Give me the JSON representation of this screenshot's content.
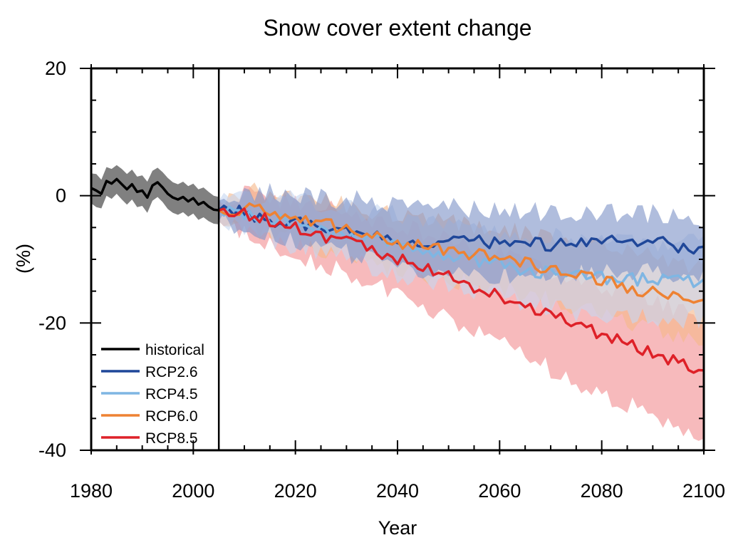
{
  "chart_data": {
    "type": "line",
    "title": "Snow cover extent change",
    "xlabel": "Year",
    "ylabel": "(%)",
    "xlim": [
      1980,
      2100
    ],
    "ylim": [
      -40,
      20
    ],
    "xticks": [
      1980,
      2000,
      2020,
      2040,
      2060,
      2080,
      2100
    ],
    "yticks": [
      20,
      0,
      -20,
      -40
    ],
    "xtick_labels": [
      "1980",
      "2000",
      "2020",
      "2040",
      "2060",
      "2080",
      "2100"
    ],
    "ytick_labels": [
      "20",
      "0",
      "-20",
      "-40"
    ],
    "vline_x": 2005,
    "grid": false,
    "legend_position": "bottom-left",
    "series": [
      {
        "name": "historical",
        "color": "#000000",
        "band_color": "#808080",
        "x": [
          1980,
          1981,
          1982,
          1983,
          1984,
          1985,
          1986,
          1987,
          1988,
          1989,
          1990,
          1991,
          1992,
          1993,
          1994,
          1995,
          1996,
          1997,
          1998,
          1999,
          2000,
          2001,
          2002,
          2003,
          2004,
          2005
        ],
        "y": [
          1.2,
          0.8,
          0.3,
          2.3,
          1.9,
          2.6,
          1.8,
          1.0,
          1.8,
          0.6,
          0.8,
          -0.3,
          1.6,
          2.1,
          1.3,
          0.3,
          -0.3,
          -0.6,
          -0.2,
          -0.9,
          -0.4,
          -1.4,
          -1.0,
          -1.7,
          -2.2,
          -2.3
        ],
        "upper": [
          3.5,
          3.4,
          2.5,
          4.5,
          4.2,
          4.8,
          4.2,
          3.4,
          4.1,
          3.0,
          3.2,
          2.2,
          3.9,
          4.4,
          3.7,
          2.8,
          2.1,
          1.8,
          2.2,
          1.5,
          1.9,
          1.0,
          1.3,
          0.6,
          0.0,
          -0.2
        ],
        "lower": [
          -1.2,
          -1.8,
          -2.0,
          0.0,
          -0.5,
          0.3,
          -0.6,
          -1.4,
          -0.6,
          -1.8,
          -1.6,
          -2.7,
          -0.8,
          -0.2,
          -1.0,
          -2.1,
          -2.7,
          -3.0,
          -2.6,
          -3.3,
          -2.8,
          -3.8,
          -3.4,
          -4.0,
          -4.4,
          -4.5
        ]
      },
      {
        "name": "RCP2.6",
        "color": "#1f4799",
        "band_color": "#7f95c8",
        "x": [
          2005,
          2010,
          2015,
          2020,
          2025,
          2030,
          2035,
          2040,
          2045,
          2050,
          2055,
          2060,
          2065,
          2070,
          2075,
          2080,
          2085,
          2090,
          2095,
          2100
        ],
        "y": [
          -2.3,
          -2.6,
          -3.8,
          -4.3,
          -4.9,
          -5.6,
          -6.3,
          -6.9,
          -7.5,
          -7.2,
          -6.9,
          -7.6,
          -7.3,
          -7.9,
          -7.0,
          -6.9,
          -7.7,
          -7.2,
          -7.9,
          -8.3
        ],
        "upper": [
          -0.8,
          0.4,
          0.6,
          0.1,
          -0.3,
          -0.6,
          -0.8,
          -1.2,
          -1.5,
          -1.8,
          -1.9,
          -2.2,
          -2.3,
          -2.7,
          -2.6,
          -2.5,
          -2.9,
          -2.7,
          -3.2,
          -3.6
        ],
        "lower": [
          -4.0,
          -5.2,
          -6.4,
          -7.3,
          -8.2,
          -9.1,
          -10.2,
          -11.1,
          -11.8,
          -12.0,
          -12.0,
          -12.5,
          -12.3,
          -12.9,
          -12.1,
          -11.7,
          -12.4,
          -11.9,
          -12.3,
          -12.7
        ]
      },
      {
        "name": "RCP4.5",
        "color": "#7fb6e3",
        "band_color": "#c6d6f0",
        "x": [
          2005,
          2010,
          2015,
          2020,
          2025,
          2030,
          2035,
          2040,
          2045,
          2050,
          2055,
          2060,
          2065,
          2070,
          2075,
          2080,
          2085,
          2090,
          2095,
          2100
        ],
        "y": [
          -2.3,
          -2.9,
          -3.6,
          -4.3,
          -5.2,
          -6.1,
          -6.8,
          -7.6,
          -8.5,
          -9.3,
          -10.2,
          -10.8,
          -11.6,
          -12.2,
          -12.6,
          -12.9,
          -13.1,
          -13.2,
          -13.3,
          -13.4
        ],
        "upper": [
          -0.8,
          0.1,
          -0.2,
          -0.6,
          -1.3,
          -2.0,
          -2.5,
          -3.1,
          -3.8,
          -4.4,
          -5.1,
          -5.5,
          -6.1,
          -6.5,
          -6.8,
          -7.0,
          -7.1,
          -7.2,
          -7.3,
          -7.4
        ],
        "lower": [
          -4.0,
          -5.6,
          -6.8,
          -7.9,
          -9.0,
          -10.2,
          -11.2,
          -12.3,
          -13.3,
          -14.3,
          -15.4,
          -16.2,
          -17.2,
          -17.8,
          -18.3,
          -18.7,
          -19.0,
          -19.2,
          -19.3,
          -19.5
        ]
      },
      {
        "name": "RCP6.0",
        "color": "#ee8233",
        "band_color": "#f5b88a",
        "x": [
          2005,
          2010,
          2015,
          2020,
          2025,
          2030,
          2035,
          2040,
          2045,
          2050,
          2055,
          2060,
          2065,
          2070,
          2075,
          2080,
          2085,
          2090,
          2095,
          2100
        ],
        "y": [
          -2.3,
          -2.1,
          -2.6,
          -3.3,
          -4.3,
          -5.3,
          -6.2,
          -7.2,
          -8.0,
          -8.7,
          -9.3,
          -9.9,
          -10.6,
          -11.4,
          -12.4,
          -13.3,
          -14.3,
          -15.3,
          -16.2,
          -17.0
        ],
        "upper": [
          -0.8,
          0.5,
          0.7,
          0.1,
          -0.7,
          -1.6,
          -2.3,
          -3.1,
          -3.7,
          -4.2,
          -4.7,
          -5.2,
          -5.7,
          -6.4,
          -7.3,
          -8.1,
          -9.0,
          -9.8,
          -10.6,
          -11.3
        ],
        "lower": [
          -4.0,
          -4.8,
          -6.0,
          -7.0,
          -8.2,
          -9.3,
          -10.4,
          -11.5,
          -12.4,
          -13.3,
          -14.0,
          -14.7,
          -15.6,
          -16.5,
          -17.6,
          -18.6,
          -19.8,
          -20.9,
          -21.9,
          -22.8
        ]
      },
      {
        "name": "RCP8.5",
        "color": "#de2128",
        "band_color": "#f28f93",
        "x": [
          2005,
          2010,
          2015,
          2020,
          2025,
          2030,
          2035,
          2040,
          2045,
          2050,
          2055,
          2060,
          2065,
          2070,
          2075,
          2080,
          2085,
          2090,
          2095,
          2100
        ],
        "y": [
          -2.3,
          -2.7,
          -3.9,
          -5.2,
          -6.3,
          -7.4,
          -8.5,
          -9.8,
          -11.3,
          -12.8,
          -14.3,
          -15.8,
          -17.3,
          -18.8,
          -20.3,
          -21.8,
          -23.3,
          -24.8,
          -26.3,
          -27.6
        ],
        "upper": [
          -0.8,
          0.2,
          -0.3,
          -1.2,
          -2.0,
          -2.8,
          -3.5,
          -4.5,
          -5.6,
          -6.8,
          -8.0,
          -9.2,
          -10.4,
          -11.7,
          -12.8,
          -14.0,
          -15.3,
          -16.5,
          -17.7,
          -18.8
        ],
        "lower": [
          -4.0,
          -5.5,
          -7.4,
          -9.2,
          -10.6,
          -12.3,
          -13.8,
          -15.5,
          -17.4,
          -19.3,
          -21.2,
          -23.2,
          -25.2,
          -27.2,
          -29.2,
          -31.1,
          -32.8,
          -34.6,
          -36.0,
          -37.2
        ]
      }
    ]
  }
}
